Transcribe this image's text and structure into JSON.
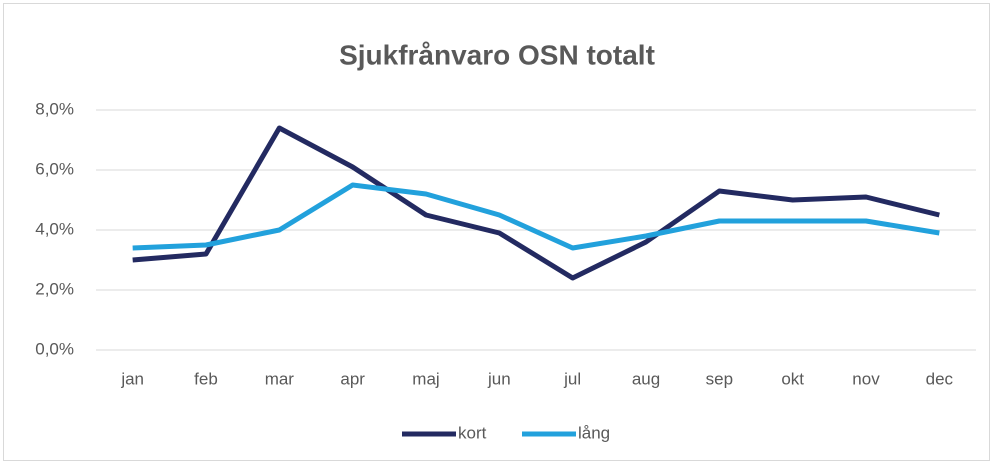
{
  "chart_data": {
    "type": "line",
    "title": "Sjukfrånvaro OSN totalt",
    "categories": [
      "jan",
      "feb",
      "mar",
      "apr",
      "maj",
      "jun",
      "jul",
      "aug",
      "sep",
      "okt",
      "nov",
      "dec"
    ],
    "series": [
      {
        "name": "kort",
        "color": "#232a61",
        "values": [
          3.0,
          3.2,
          7.4,
          6.1,
          4.5,
          3.9,
          2.4,
          3.6,
          5.3,
          5.0,
          5.1,
          4.5
        ]
      },
      {
        "name": "lång",
        "color": "#22a1dc",
        "values": [
          3.4,
          3.5,
          4.0,
          5.5,
          5.2,
          4.5,
          3.4,
          3.8,
          4.3,
          4.3,
          4.3,
          3.9
        ]
      }
    ],
    "ylim": [
      0,
      8
    ],
    "yticks": [
      {
        "value": 0,
        "label": "0,0%"
      },
      {
        "value": 2,
        "label": "2,0%"
      },
      {
        "value": 4,
        "label": "4,0%"
      },
      {
        "value": 6,
        "label": "6,0%"
      },
      {
        "value": 8,
        "label": "8,0%"
      }
    ],
    "grid": true,
    "legend": "bottom"
  }
}
